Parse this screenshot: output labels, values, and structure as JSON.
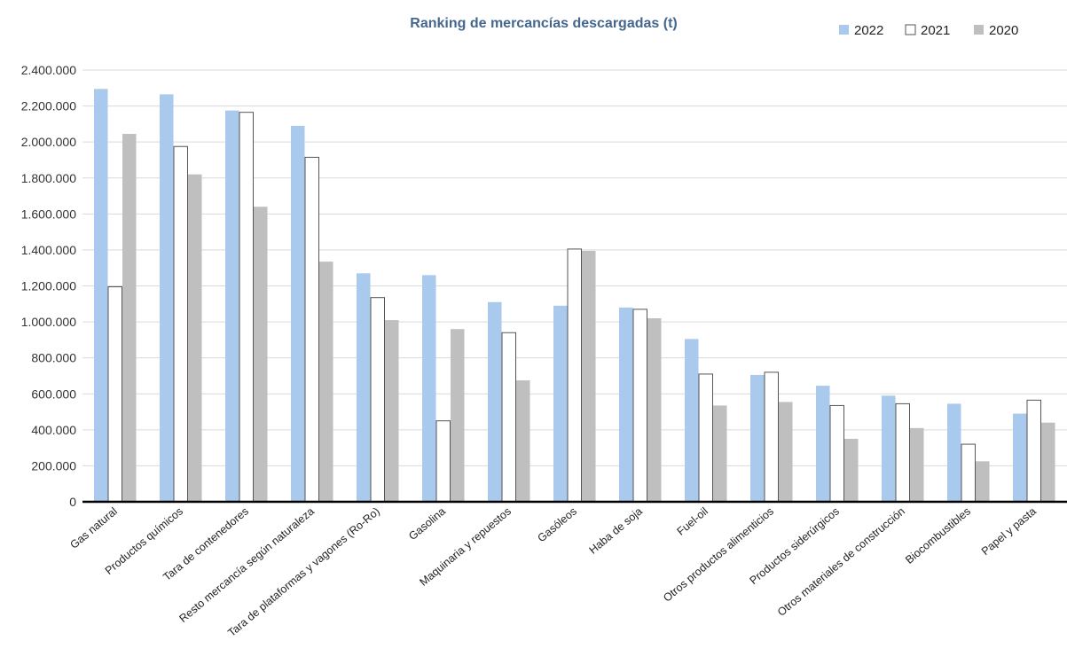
{
  "chart_data": {
    "type": "bar",
    "title": "Ranking de mercancías descargadas (t)",
    "xlabel": "",
    "ylabel": "",
    "ylim": [
      0,
      2400000
    ],
    "yticks": [
      0,
      200000,
      400000,
      600000,
      800000,
      1000000,
      1200000,
      1400000,
      1600000,
      1800000,
      2000000,
      2200000,
      2400000
    ],
    "ytick_labels": [
      "0",
      "200.000",
      "400.000",
      "600.000",
      "800.000",
      "1.000.000",
      "1.200.000",
      "1.400.000",
      "1.600.000",
      "1.800.000",
      "2.000.000",
      "2.200.000",
      "2.400.000"
    ],
    "grid": true,
    "legend_position": "top-right",
    "categories": [
      "Gas natural",
      "Productos químicos",
      "Tara de contenedores",
      "Resto mercancía según naturaleza",
      "Tara de plataformas y vagones (Ro-Ro)",
      "Gasolina",
      "Maquinaria y repuestos",
      "Gasóleos",
      "Haba de soja",
      "Fuel-oil",
      "Otros productos alimenticios",
      "Productos siderúrgicos",
      "Otros materiales de construcción",
      "Biocombustibles",
      "Papel y pasta"
    ],
    "series": [
      {
        "name": "2022",
        "color": "#a9c9ed",
        "stroke": "#a9c9ed",
        "values": [
          2295000,
          2265000,
          2175000,
          2090000,
          1270000,
          1260000,
          1110000,
          1090000,
          1080000,
          905000,
          705000,
          645000,
          590000,
          545000,
          490000
        ]
      },
      {
        "name": "2021",
        "color": "#ffffff",
        "stroke": "#555555",
        "values": [
          1195000,
          1975000,
          2165000,
          1915000,
          1135000,
          450000,
          940000,
          1405000,
          1070000,
          710000,
          720000,
          535000,
          545000,
          320000,
          565000
        ]
      },
      {
        "name": "2020",
        "color": "#bfbfbf",
        "stroke": "#bfbfbf",
        "values": [
          2045000,
          1820000,
          1640000,
          1335000,
          1010000,
          960000,
          675000,
          1395000,
          1020000,
          535000,
          555000,
          350000,
          410000,
          225000,
          440000
        ]
      }
    ],
    "colors": {
      "title": "#44668f",
      "grid": "#d9d9d9",
      "axis": "#000000"
    }
  }
}
